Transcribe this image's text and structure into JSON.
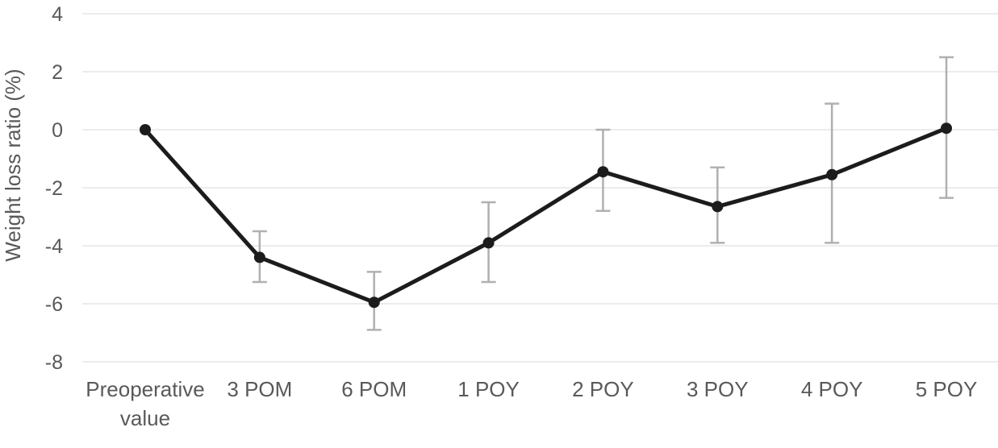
{
  "chart_data": {
    "type": "line",
    "title": "",
    "xlabel": "",
    "ylabel": "Weight loss ratio (%)",
    "categories": [
      "Preoperative value",
      "3 POM",
      "6 POM",
      "1 POY",
      "2 POY",
      "3 POY",
      "4 POY",
      "5 POY"
    ],
    "yticks": [
      4,
      2,
      0,
      -2,
      -4,
      -6,
      -8
    ],
    "ylim": [
      -8,
      4
    ],
    "grid": "horizontal-only",
    "legend": "none",
    "series": [
      {
        "name": "Weight loss ratio (%)",
        "values": [
          0,
          -4.4,
          -5.95,
          -3.9,
          -1.45,
          -2.65,
          -1.55,
          0.05
        ],
        "error_upper": [
          0,
          0.9,
          1.05,
          1.4,
          1.45,
          1.35,
          2.45,
          2.45
        ],
        "error_lower": [
          0,
          0.85,
          0.95,
          1.35,
          1.35,
          1.25,
          2.35,
          2.4
        ],
        "marker": "filled-circle",
        "line_color": "#1c1c1c",
        "marker_color": "#1c1c1c",
        "error_bar_color": "#b0b0b0"
      }
    ],
    "colors": {
      "background": "#ffffff",
      "gridline": "#ececec",
      "tick_label": "#595959",
      "axis_title": "#595959"
    }
  }
}
